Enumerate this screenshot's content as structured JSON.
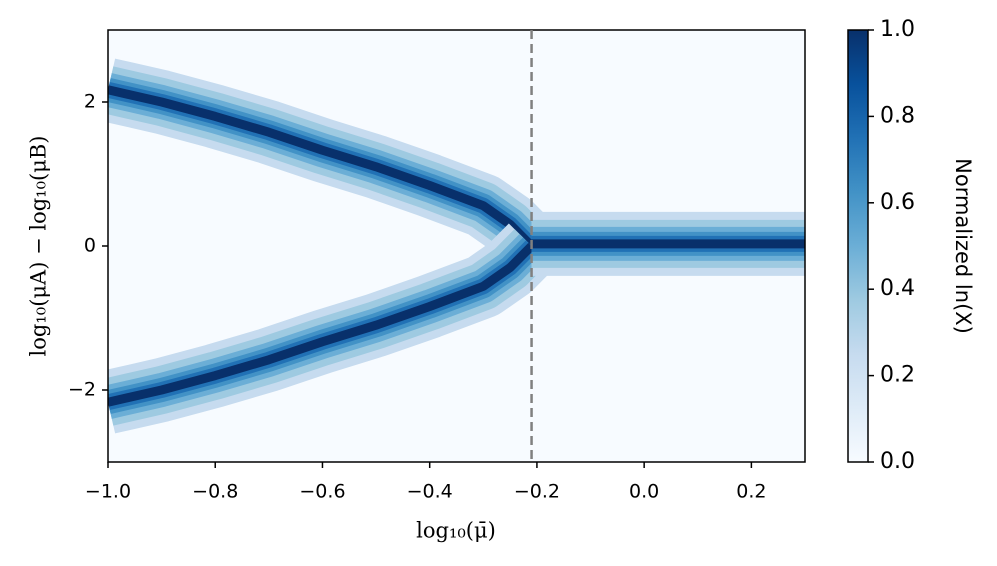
{
  "chart_data": {
    "type": "heatmap-ridge",
    "xlabel": "log₁₀(μ̄)",
    "ylabel": "log₁₀(μA) − log₁₀(μB)",
    "colorbar_label": "Normalized ln(X)",
    "x": [
      -1,
      -0.9,
      -0.8,
      -0.7,
      -0.6,
      -0.5,
      -0.4,
      -0.3,
      -0.25,
      -0.21,
      -0.1,
      0,
      0.1,
      0.2,
      0.3
    ],
    "series": [
      {
        "values": [
          2.17,
          2.0,
          1.8,
          1.58,
          1.33,
          1.1,
          0.84,
          0.56,
          0.3,
          0,
          null,
          null,
          null,
          null,
          null
        ]
      },
      {
        "values": [
          -2.17,
          -2.0,
          -1.8,
          -1.58,
          -1.33,
          -1.1,
          -0.84,
          -0.56,
          -0.3,
          0,
          null,
          null,
          null,
          null,
          null
        ]
      },
      {
        "values": [
          null,
          null,
          null,
          null,
          null,
          null,
          null,
          null,
          null,
          0.03,
          0.03,
          0.03,
          0.03,
          0.03,
          0.03
        ]
      }
    ],
    "vline": -0.21,
    "vline_color": "#808080",
    "colormap": [
      "#f7fbff",
      "#deebf7",
      "#c6dbef",
      "#9ecae1",
      "#6baed6",
      "#4292c6",
      "#2171b5",
      "#08519c",
      "#08306b"
    ],
    "xlim": [
      -1,
      0.3
    ],
    "ylim": [
      -3,
      3
    ],
    "clim": [
      0,
      1
    ],
    "xticks": [
      {
        "value": -1,
        "label": "−1.0"
      },
      {
        "value": -0.8,
        "label": "−0.8"
      },
      {
        "value": -0.6,
        "label": "−0.6"
      },
      {
        "value": -0.4,
        "label": "−0.4"
      },
      {
        "value": -0.2,
        "label": "−0.2"
      },
      {
        "value": 0,
        "label": "0.0"
      },
      {
        "value": 0.2,
        "label": "0.2"
      }
    ],
    "yticks": [
      {
        "value": -2,
        "label": "−2"
      },
      0,
      2
    ],
    "cticks": [
      {
        "value": 0,
        "label": "0.0"
      },
      0.2,
      0.4,
      0.6,
      0.8,
      {
        "value": 1,
        "label": "1.0"
      }
    ]
  }
}
